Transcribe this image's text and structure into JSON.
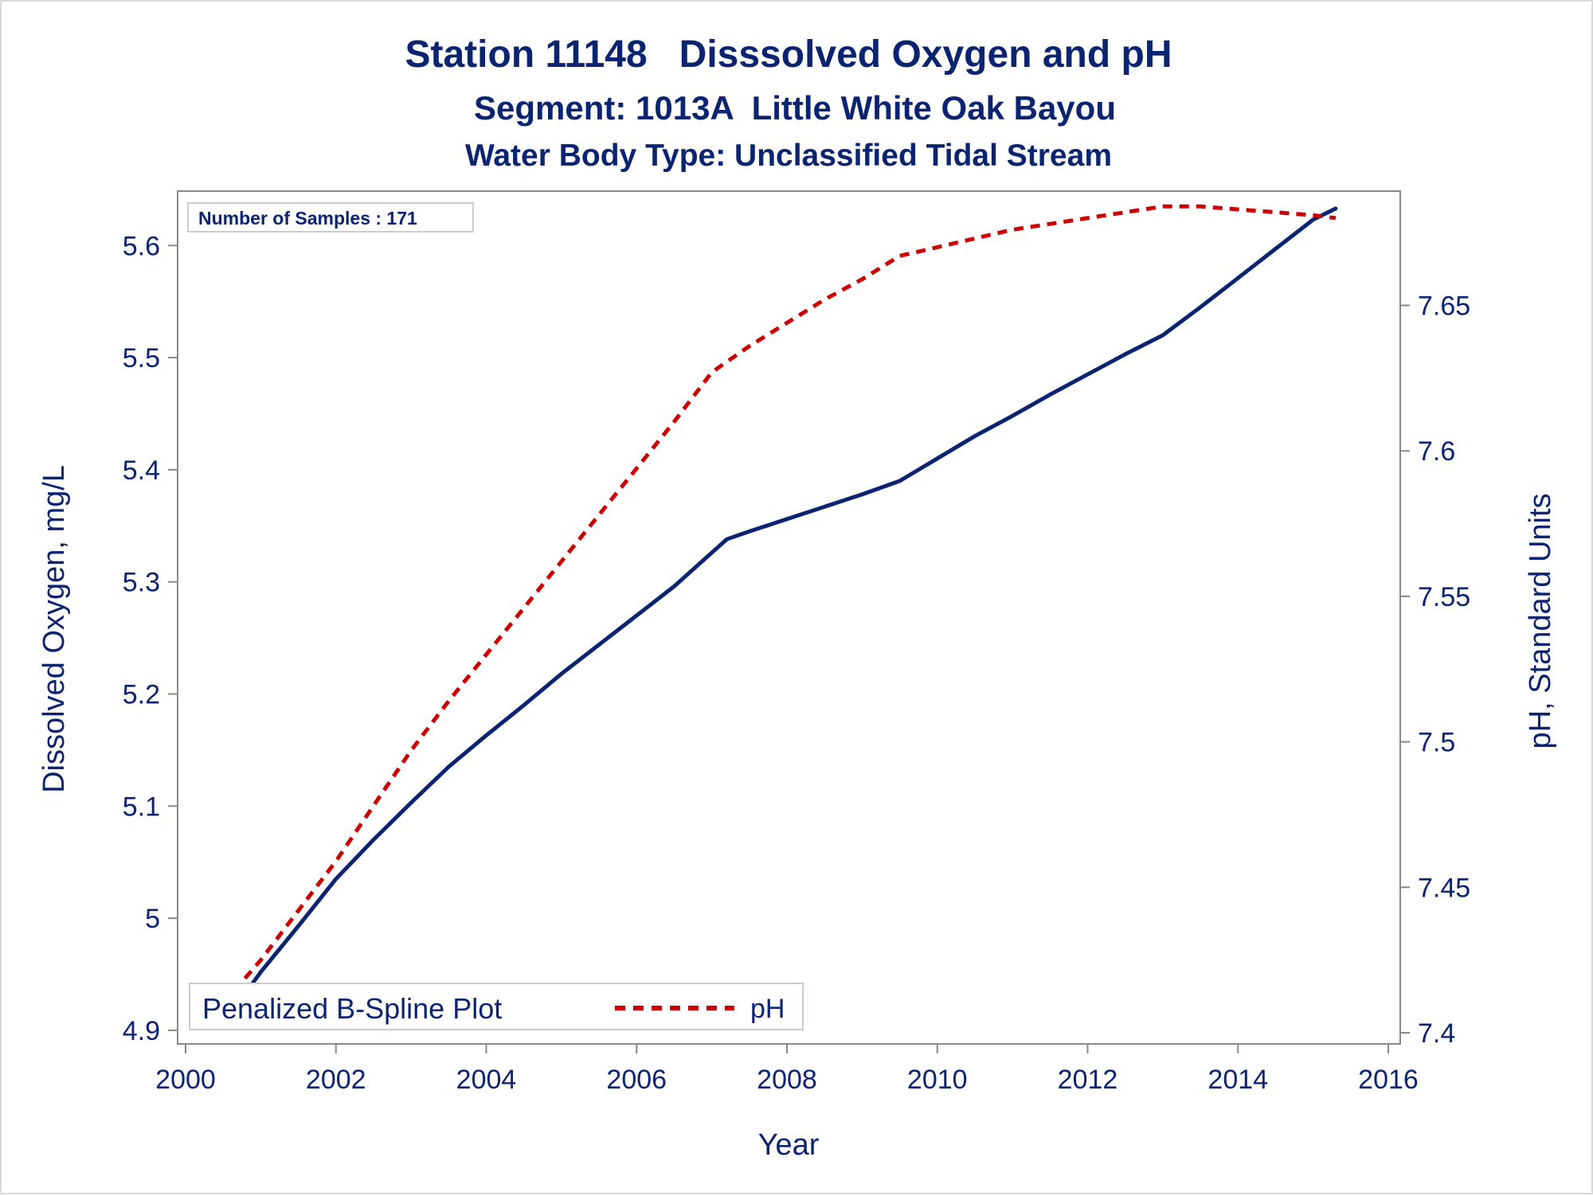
{
  "chart_data": {
    "type": "line",
    "title": "Station 11148   Disssolved Oxygen and pH",
    "subtitle": "Segment: 1013A  Little White Oak Bayou",
    "subtitle2": "Water Body Type: Unclassified Tidal Stream",
    "xlabel": "Year",
    "ylabel_left": "Dissolved Oxygen, mg/L",
    "ylabel_right": "pH, Standard Units",
    "inset_label": "Number of Samples : 171",
    "legend": {
      "title": "Penalized B-Spline Plot",
      "entries": [
        "pH"
      ],
      "placement": "bottom-left"
    },
    "grid": false,
    "xlim": [
      2000,
      2016
    ],
    "x_ticks": [
      "2000",
      "2002",
      "2004",
      "2006",
      "2008",
      "2010",
      "2012",
      "2014",
      "2016"
    ],
    "ylim_left": [
      4.89,
      5.64
    ],
    "y_ticks_left": [
      "4.9",
      "5",
      "5.1",
      "5.2",
      "5.3",
      "5.4",
      "5.5",
      "5.6"
    ],
    "ylim_right": [
      7.397,
      7.686
    ],
    "y_ticks_right": [
      "7.4",
      "7.45",
      "7.5",
      "7.55",
      "7.6",
      "7.65"
    ],
    "colors": {
      "text": "#0a2472",
      "dissolved_oxygen": "#0a2472",
      "ph": "#cc0000",
      "axis": "#888888"
    },
    "series": [
      {
        "axis": "left",
        "style": "solid",
        "x": [
          2000.6,
          2001.0,
          2001.5,
          2002.0,
          2002.5,
          2003.0,
          2003.5,
          2004.0,
          2004.5,
          2005.0,
          2005.5,
          2006.0,
          2006.5,
          2007.0,
          2007.2,
          2007.5,
          2008.0,
          2008.5,
          2009.0,
          2009.5,
          2010.0,
          2010.5,
          2011.0,
          2011.5,
          2012.0,
          2012.5,
          2013.0,
          2013.5,
          2014.0,
          2014.5,
          2015.0,
          2015.3
        ],
        "y": [
          4.915,
          4.952,
          4.993,
          5.035,
          5.07,
          5.103,
          5.135,
          5.163,
          5.19,
          5.218,
          5.244,
          5.27,
          5.296,
          5.326,
          5.338,
          5.345,
          5.356,
          5.367,
          5.378,
          5.39,
          5.41,
          5.43,
          5.448,
          5.467,
          5.485,
          5.503,
          5.52,
          5.545,
          5.571,
          5.597,
          5.623,
          5.633
        ]
      },
      {
        "name": "pH",
        "axis": "right",
        "style": "dashed",
        "x": [
          2000.5,
          2001.0,
          2001.5,
          2002.0,
          2002.5,
          2003.0,
          2003.5,
          2004.0,
          2004.5,
          2005.0,
          2005.5,
          2006.0,
          2006.5,
          2007.0,
          2007.5,
          2008.0,
          2008.5,
          2009.0,
          2009.5,
          2010.0,
          2010.5,
          2011.0,
          2011.5,
          2012.0,
          2012.5,
          2013.0,
          2013.5,
          2014.0,
          2014.5,
          2015.0,
          2015.3
        ],
        "y": [
          7.41,
          7.425,
          7.442,
          7.459,
          7.478,
          7.497,
          7.514,
          7.53,
          7.546,
          7.562,
          7.578,
          7.594,
          7.61,
          7.627,
          7.636,
          7.644,
          7.652,
          7.659,
          7.667,
          7.67,
          7.673,
          7.676,
          7.678,
          7.68,
          7.682,
          7.684,
          7.684,
          7.683,
          7.682,
          7.681,
          7.68
        ]
      }
    ]
  }
}
